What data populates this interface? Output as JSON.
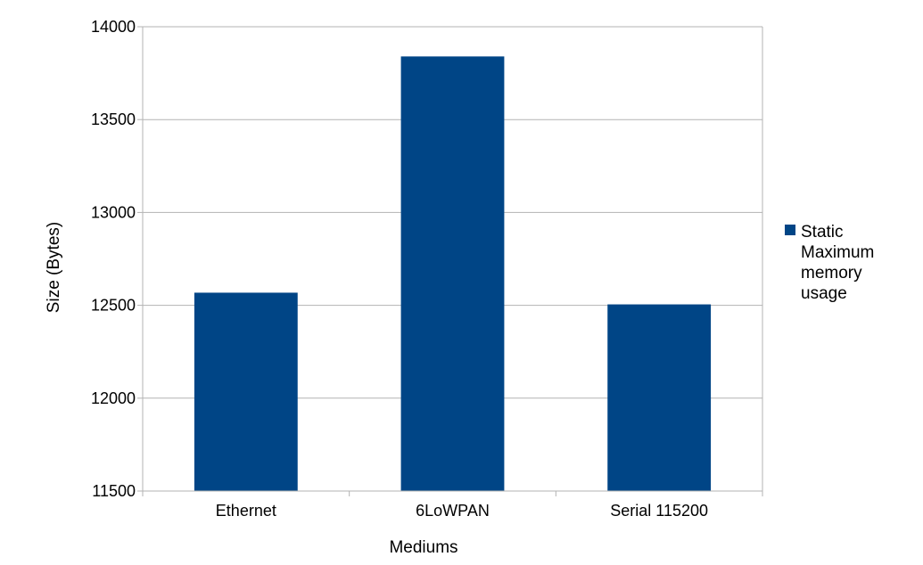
{
  "chart_data": {
    "type": "bar",
    "categories": [
      "Ethernet",
      "6LoWPAN",
      "Serial 115200"
    ],
    "series": [
      {
        "name": "Static Maximum memory usage",
        "legend_lines": [
          "Static",
          "Maximum",
          "memory",
          "usage"
        ],
        "values": [
          12568,
          13840,
          12505
        ],
        "color": "#004586"
      }
    ],
    "xlabel": "Mediums",
    "ylabel": "Size (Bytes)",
    "ylim": [
      11500,
      14000
    ],
    "yticks": [
      11500,
      12000,
      12500,
      13000,
      13500,
      14000
    ],
    "grid": true,
    "legend_position": "right"
  }
}
